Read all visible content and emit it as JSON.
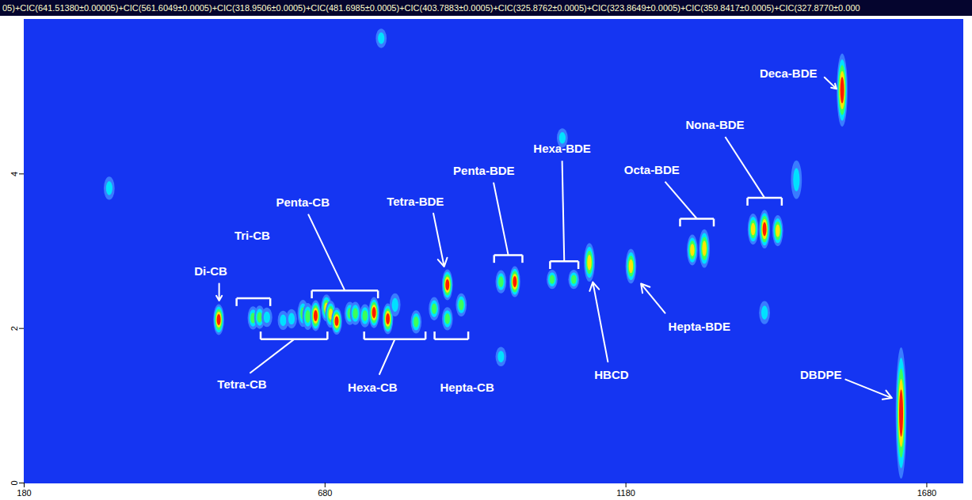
{
  "chart_data": {
    "type": "contour",
    "title": "05)+CIC(641.51380±0.00005)+CIC(561.6049±0.0005)+CIC(318.9506±0.0005)+CIC(481.6985±0.0005)+CIC(403.7883±0.0005)+CIC(325.8762±0.0005)+CIC(323.8649±0.0005)+CIC(359.8417±0.0005)+CIC(327.8770±0.000",
    "xlim": [
      180,
      1740
    ],
    "xticks": [
      180,
      680,
      1180,
      1680
    ],
    "ylim": [
      0,
      6
    ],
    "yticks": [
      0,
      2,
      4
    ],
    "intensity_levels": [
      0,
      1,
      2,
      3,
      4
    ],
    "colors": [
      "#3a7bff",
      "#00e1ff",
      "#3cff5a",
      "#ffe600",
      "#ff1a00"
    ],
    "peaks": [
      {
        "x": 322,
        "y": 3.81,
        "intensity": 1,
        "height": 0.3
      },
      {
        "x": 774,
        "y": 5.75,
        "intensity": 1,
        "height": 0.25
      },
      {
        "x": 504,
        "y": 2.11,
        "intensity": 4,
        "height": 0.4
      },
      {
        "x": 561,
        "y": 2.13,
        "intensity": 2,
        "height": 0.3
      },
      {
        "x": 572,
        "y": 2.14,
        "intensity": 2,
        "height": 0.3
      },
      {
        "x": 584,
        "y": 2.14,
        "intensity": 1,
        "height": 0.25
      },
      {
        "x": 611,
        "y": 2.1,
        "intensity": 1,
        "height": 0.25
      },
      {
        "x": 625,
        "y": 2.12,
        "intensity": 1,
        "height": 0.25
      },
      {
        "x": 644,
        "y": 2.19,
        "intensity": 2,
        "height": 0.35
      },
      {
        "x": 652,
        "y": 2.15,
        "intensity": 2,
        "height": 0.35
      },
      {
        "x": 665,
        "y": 2.16,
        "intensity": 4,
        "height": 0.4
      },
      {
        "x": 683,
        "y": 2.26,
        "intensity": 3,
        "height": 0.35
      },
      {
        "x": 690,
        "y": 2.18,
        "intensity": 3,
        "height": 0.35
      },
      {
        "x": 700,
        "y": 2.09,
        "intensity": 4,
        "height": 0.35
      },
      {
        "x": 722,
        "y": 2.19,
        "intensity": 2,
        "height": 0.3
      },
      {
        "x": 731,
        "y": 2.19,
        "intensity": 2,
        "height": 0.3
      },
      {
        "x": 747,
        "y": 2.16,
        "intensity": 2,
        "height": 0.3
      },
      {
        "x": 762,
        "y": 2.2,
        "intensity": 4,
        "height": 0.4
      },
      {
        "x": 785,
        "y": 2.12,
        "intensity": 4,
        "height": 0.4
      },
      {
        "x": 797,
        "y": 2.3,
        "intensity": 1,
        "height": 0.3
      },
      {
        "x": 832,
        "y": 2.08,
        "intensity": 2,
        "height": 0.3
      },
      {
        "x": 862,
        "y": 2.25,
        "intensity": 2,
        "height": 0.3
      },
      {
        "x": 884,
        "y": 2.56,
        "intensity": 4,
        "height": 0.4
      },
      {
        "x": 884,
        "y": 2.12,
        "intensity": 2,
        "height": 0.3
      },
      {
        "x": 907,
        "y": 2.3,
        "intensity": 2,
        "height": 0.3
      },
      {
        "x": 973,
        "y": 2.6,
        "intensity": 2,
        "height": 0.3
      },
      {
        "x": 996,
        "y": 2.6,
        "intensity": 4,
        "height": 0.4
      },
      {
        "x": 973,
        "y": 1.63,
        "intensity": 1,
        "height": 0.25
      },
      {
        "x": 1058,
        "y": 2.63,
        "intensity": 2,
        "height": 0.25
      },
      {
        "x": 1094,
        "y": 2.63,
        "intensity": 2,
        "height": 0.25
      },
      {
        "x": 1075,
        "y": 4.46,
        "intensity": 1,
        "height": 0.25
      },
      {
        "x": 1120,
        "y": 2.85,
        "intensity": 3,
        "height": 0.5
      },
      {
        "x": 1189,
        "y": 2.8,
        "intensity": 3,
        "height": 0.45
      },
      {
        "x": 1291,
        "y": 3.01,
        "intensity": 3,
        "height": 0.4
      },
      {
        "x": 1311,
        "y": 3.03,
        "intensity": 3,
        "height": 0.5
      },
      {
        "x": 1392,
        "y": 3.28,
        "intensity": 3,
        "height": 0.4
      },
      {
        "x": 1411,
        "y": 3.28,
        "intensity": 4,
        "height": 0.5
      },
      {
        "x": 1433,
        "y": 3.26,
        "intensity": 3,
        "height": 0.4
      },
      {
        "x": 1411,
        "y": 2.2,
        "intensity": 1,
        "height": 0.3
      },
      {
        "x": 1464,
        "y": 3.92,
        "intensity": 1,
        "height": 0.5
      },
      {
        "x": 1540,
        "y": 5.08,
        "intensity": 4,
        "height": 0.95
      },
      {
        "x": 1638,
        "y": 0.9,
        "intensity": 4,
        "height": 1.7
      }
    ],
    "annotations": [
      {
        "text": "Di-CB",
        "x": 490,
        "y": 2.74,
        "line_from": [
          504,
          2.58
        ],
        "arrow_to": [
          504,
          2.36
        ]
      },
      {
        "text": "Tri-CB",
        "x": 559,
        "y": 3.2,
        "bracket": [
          533,
          589,
          2.39
        ]
      },
      {
        "text": "Penta-CB",
        "x": 643,
        "y": 3.63,
        "line_from": [
          652,
          3.48
        ],
        "bracket": [
          658,
          768,
          2.49
        ]
      },
      {
        "text": "Tetra-CB",
        "x": 542,
        "y": 1.27,
        "line_from": [
          555,
          1.42
        ],
        "bracket": [
          573,
          684,
          1.86
        ]
      },
      {
        "text": "Hexa-CB",
        "x": 759,
        "y": 1.23,
        "line_from": [
          770,
          1.4
        ],
        "bracket": [
          745,
          847,
          1.86
        ]
      },
      {
        "text": "Hepta-CB",
        "x": 916,
        "y": 1.23,
        "bracket": [
          862,
          918,
          1.86
        ]
      },
      {
        "text": "Tetra-BDE",
        "x": 830,
        "y": 3.64,
        "line_from": [
          860,
          3.49
        ],
        "arrow_to": [
          878,
          2.8
        ]
      },
      {
        "text": "Penta-BDE",
        "x": 944,
        "y": 4.04,
        "line_from": [
          960,
          3.89
        ],
        "bracket": [
          961,
          1008,
          2.95
        ]
      },
      {
        "text": "Hexa-BDE",
        "x": 1074,
        "y": 4.32,
        "line_from": [
          1074,
          4.17
        ],
        "bracket": [
          1054,
          1101,
          2.87
        ]
      },
      {
        "text": "HBCD",
        "x": 1156,
        "y": 1.4,
        "line_from": [
          1150,
          1.57
        ],
        "arrow_to": [
          1125,
          2.6
        ]
      },
      {
        "text": "Hepta-BDE",
        "x": 1302,
        "y": 2.02,
        "line_from": [
          1245,
          2.2
        ],
        "arrow_to": [
          1205,
          2.58
        ]
      },
      {
        "text": "Octa-BDE",
        "x": 1223,
        "y": 4.05,
        "line_from": [
          1245,
          3.9
        ],
        "bracket": [
          1270,
          1326,
          3.42
        ]
      },
      {
        "text": "Nona-BDE",
        "x": 1328,
        "y": 4.63,
        "line_from": [
          1345,
          4.48
        ],
        "bracket": [
          1382,
          1439,
          3.69
        ]
      },
      {
        "text": "Deca-BDE",
        "x": 1450,
        "y": 5.3,
        "line_from": [
          1510,
          5.25
        ],
        "arrow_to": [
          1530,
          5.1
        ]
      },
      {
        "text": "DBDPE",
        "x": 1504,
        "y": 1.4,
        "line_from": [
          1545,
          1.34
        ],
        "arrow_to": [
          1622,
          1.1
        ]
      }
    ]
  }
}
